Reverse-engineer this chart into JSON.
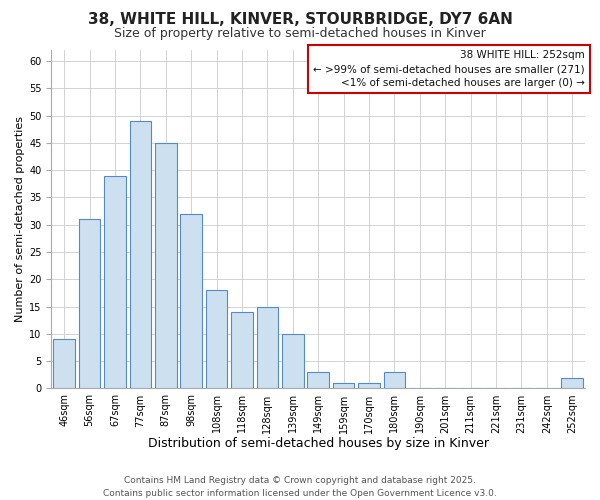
{
  "title": "38, WHITE HILL, KINVER, STOURBRIDGE, DY7 6AN",
  "subtitle": "Size of property relative to semi-detached houses in Kinver",
  "xlabel": "Distribution of semi-detached houses by size in Kinver",
  "ylabel": "Number of semi-detached properties",
  "categories": [
    "46sqm",
    "56sqm",
    "67sqm",
    "77sqm",
    "87sqm",
    "98sqm",
    "108sqm",
    "118sqm",
    "128sqm",
    "139sqm",
    "149sqm",
    "159sqm",
    "170sqm",
    "180sqm",
    "190sqm",
    "201sqm",
    "211sqm",
    "221sqm",
    "231sqm",
    "242sqm",
    "252sqm"
  ],
  "values": [
    9,
    31,
    39,
    49,
    45,
    32,
    18,
    14,
    15,
    10,
    3,
    1,
    1,
    3,
    0,
    0,
    0,
    0,
    0,
    0,
    2
  ],
  "bar_color": "#cce0f0",
  "bar_edge_color": "#5588cc",
  "annotation_text": "38 WHITE HILL: 252sqm\n← >99% of semi-detached houses are smaller (271)\n<1% of semi-detached houses are larger (0) →",
  "annotation_box_color": "#ffffff",
  "annotation_box_edge_color": "#cc0000",
  "ylim": [
    0,
    62
  ],
  "yticks": [
    0,
    5,
    10,
    15,
    20,
    25,
    30,
    35,
    40,
    45,
    50,
    55,
    60
  ],
  "footer_text": "Contains HM Land Registry data © Crown copyright and database right 2025.\nContains public sector information licensed under the Open Government Licence v3.0.",
  "background_color": "#ffffff",
  "plot_bg_color": "#ffffff",
  "grid_color": "#cccccc",
  "title_fontsize": 11,
  "subtitle_fontsize": 9,
  "xlabel_fontsize": 9,
  "ylabel_fontsize": 8,
  "tick_fontsize": 7,
  "annotation_fontsize": 7.5,
  "footer_fontsize": 6.5
}
